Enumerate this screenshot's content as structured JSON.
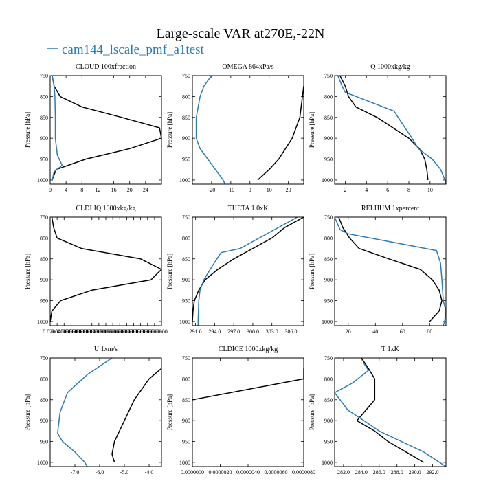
{
  "figure": {
    "title": "Large-scale VAR at270E,-22N",
    "legend": {
      "label": "cam144_lscale_pmf_a1test"
    },
    "colors": {
      "ref": "#000000",
      "test": "#2b7bb9"
    }
  },
  "chart_data": [
    {
      "type": "line",
      "title": "CLOUD  100xfraction",
      "ylabel": "Pressure [hPa]",
      "xlim": [
        0,
        28
      ],
      "ylim": [
        1010,
        750
      ],
      "y_inverted": true,
      "xticks": [
        0,
        4,
        8,
        12,
        16,
        20,
        24
      ],
      "xtick_labels": [
        "0",
        "4",
        "8",
        "12",
        "16",
        "20",
        "24"
      ],
      "yticks": [
        750,
        800,
        850,
        900,
        950,
        1000
      ],
      "ytick_labels": [
        "750",
        "800",
        "850",
        "900",
        "950",
        "1000"
      ],
      "series": [
        {
          "role": "ref",
          "points": [
            [
              0.5,
              750
            ],
            [
              1,
              775
            ],
            [
              2.5,
              800
            ],
            [
              8,
              825
            ],
            [
              18,
              850
            ],
            [
              27.5,
              875
            ],
            [
              28,
              900
            ],
            [
              20,
              925
            ],
            [
              9,
              950
            ],
            [
              1.5,
              975
            ],
            [
              0.5,
              1000
            ]
          ]
        },
        {
          "role": "test",
          "points": [
            [
              0.5,
              750
            ],
            [
              1,
              775
            ],
            [
              1.2,
              800
            ],
            [
              1.3,
              850
            ],
            [
              1.3,
              900
            ],
            [
              1.8,
              940
            ],
            [
              3,
              965
            ],
            [
              1,
              980
            ],
            [
              0.5,
              1000
            ]
          ]
        }
      ]
    },
    {
      "type": "line",
      "title": "OMEGA  864xPa/s",
      "ylabel": "Pressure [hPa]",
      "xlim": [
        -30,
        28
      ],
      "ylim": [
        1010,
        750
      ],
      "y_inverted": true,
      "xticks": [
        -20,
        -10,
        0,
        10,
        20
      ],
      "xtick_labels": [
        "-20",
        "-10",
        "0",
        "10",
        "20"
      ],
      "yticks": [
        750,
        800,
        850,
        900,
        950,
        1000
      ],
      "ytick_labels": [
        "750",
        "800",
        "850",
        "900",
        "950",
        "1000"
      ],
      "series": [
        {
          "role": "ref",
          "points": [
            [
              28,
              775
            ],
            [
              26,
              850
            ],
            [
              22,
              900
            ],
            [
              15,
              950
            ],
            [
              10,
              975
            ],
            [
              4,
              1000
            ]
          ]
        },
        {
          "role": "test",
          "points": [
            [
              -20,
              750
            ],
            [
              -24,
              775
            ],
            [
              -26,
              800
            ],
            [
              -28,
              850
            ],
            [
              -28,
              900
            ],
            [
              -26,
              925
            ],
            [
              -22,
              950
            ],
            [
              -18,
              975
            ],
            [
              -14,
              1000
            ],
            [
              -13,
              1010
            ]
          ]
        }
      ]
    },
    {
      "type": "line",
      "title": "Q  1000xkg/kg",
      "ylabel": "Pressure [hPa]",
      "xlim": [
        1,
        11.5
      ],
      "ylim": [
        1010,
        750
      ],
      "y_inverted": true,
      "xticks": [
        2,
        4,
        6,
        8,
        10
      ],
      "xtick_labels": [
        "2",
        "4",
        "6",
        "8",
        "10"
      ],
      "yticks": [
        750,
        800,
        850,
        900,
        950,
        1000
      ],
      "ytick_labels": [
        "750",
        "800",
        "850",
        "900",
        "950",
        "1000"
      ],
      "series": [
        {
          "role": "ref",
          "points": [
            [
              1.5,
              750
            ],
            [
              2,
              775
            ],
            [
              2.3,
              800
            ],
            [
              3,
              825
            ],
            [
              5,
              850
            ],
            [
              6.5,
              875
            ],
            [
              8,
              900
            ],
            [
              9,
              925
            ],
            [
              9.5,
              950
            ],
            [
              9.7,
              975
            ],
            [
              9.8,
              1000
            ]
          ]
        },
        {
          "role": "test",
          "points": [
            [
              1.3,
              750
            ],
            [
              1.7,
              775
            ],
            [
              2,
              790
            ],
            [
              6.6,
              835
            ],
            [
              8.3,
              900
            ],
            [
              8.9,
              925
            ],
            [
              10.2,
              950
            ],
            [
              11,
              975
            ],
            [
              11.4,
              1000
            ],
            [
              11.5,
              1010
            ]
          ]
        }
      ]
    },
    {
      "type": "line",
      "title": "CLDLIQ  1000xkg/kg",
      "ylabel": "Pressure [hPa]",
      "xlim": [
        0,
        0.32
      ],
      "ylim": [
        1010,
        750
      ],
      "y_inverted": true,
      "xticks": [
        0.02,
        0.04,
        0.06,
        0.08,
        0.1,
        0.12,
        0.14,
        0.16,
        0.18,
        0.2,
        0.22,
        0.24,
        0.26,
        0.28,
        0.3
      ],
      "xtick_labels": [
        "0.020000000",
        "0.04000000",
        "0.06000000",
        "0.08000000",
        "0.10000000",
        "0.12000000",
        "0.14000000",
        "0.16000000",
        "0.18000000",
        "0.20000000",
        "0.22000000",
        "0.24000000",
        "0.26000000",
        "0.28000000",
        "0.30000000"
      ],
      "yticks": [
        750,
        800,
        850,
        900,
        950,
        1000
      ],
      "ytick_labels": [
        "750",
        "800",
        "850",
        "900",
        "950",
        "1000"
      ],
      "series": [
        {
          "role": "ref",
          "points": [
            [
              0.005,
              750
            ],
            [
              0.01,
              775
            ],
            [
              0.02,
              800
            ],
            [
              0.09,
              825
            ],
            [
              0.26,
              850
            ],
            [
              0.32,
              875
            ],
            [
              0.29,
              900
            ],
            [
              0.12,
              925
            ],
            [
              0.03,
              950
            ],
            [
              0.005,
              975
            ],
            [
              0,
              1000
            ]
          ]
        }
      ]
    },
    {
      "type": "line",
      "title": "THETA  1.0xK",
      "ylabel": "Pressure [hPa]",
      "xlim": [
        290.5,
        308
      ],
      "ylim": [
        1010,
        750
      ],
      "y_inverted": true,
      "xticks": [
        291,
        294,
        297,
        300,
        303,
        306
      ],
      "xtick_labels": [
        "291.0",
        "294.0",
        "297.0",
        "300.0",
        "303.0",
        "306.0"
      ],
      "yticks": [
        750,
        800,
        850,
        900,
        950,
        1000
      ],
      "ytick_labels": [
        "750",
        "800",
        "850",
        "900",
        "950",
        "1000"
      ],
      "series": [
        {
          "role": "ref",
          "points": [
            [
              308,
              750
            ],
            [
              305,
              775
            ],
            [
              303,
              800
            ],
            [
              300,
              825
            ],
            [
              297,
              850
            ],
            [
              294.5,
              875
            ],
            [
              292.5,
              900
            ],
            [
              291.5,
              925
            ],
            [
              290.8,
              950
            ],
            [
              290.6,
              975
            ],
            [
              290.5,
              1000
            ]
          ]
        },
        {
          "role": "test",
          "points": [
            [
              307,
              750
            ],
            [
              301,
              800
            ],
            [
              298,
              825
            ],
            [
              295,
              835
            ],
            [
              293.5,
              870
            ],
            [
              292.3,
              900
            ],
            [
              291.7,
              925
            ],
            [
              291.5,
              950
            ],
            [
              291.4,
              1000
            ],
            [
              291.4,
              1010
            ]
          ]
        }
      ]
    },
    {
      "type": "line",
      "title": "RELHUM  1xpercent",
      "ylabel": "Pressure [hPa]",
      "xlim": [
        10,
        92
      ],
      "ylim": [
        1010,
        750
      ],
      "y_inverted": true,
      "xticks": [
        20,
        40,
        60,
        80
      ],
      "xtick_labels": [
        "20",
        "40",
        "60",
        "80"
      ],
      "yticks": [
        750,
        800,
        850,
        900,
        950,
        1000
      ],
      "ytick_labels": [
        "750",
        "800",
        "850",
        "900",
        "950",
        "1000"
      ],
      "series": [
        {
          "role": "ref",
          "points": [
            [
              13,
              750
            ],
            [
              16,
              775
            ],
            [
              21,
              800
            ],
            [
              28,
              825
            ],
            [
              50,
              850
            ],
            [
              73,
              875
            ],
            [
              82,
              900
            ],
            [
              87,
              925
            ],
            [
              89,
              950
            ],
            [
              87,
              975
            ],
            [
              80,
              1000
            ]
          ]
        },
        {
          "role": "test",
          "points": [
            [
              10,
              750
            ],
            [
              14,
              780
            ],
            [
              20,
              790
            ],
            [
              85,
              830
            ],
            [
              88,
              860
            ],
            [
              89,
              900
            ],
            [
              90,
              950
            ],
            [
              92,
              975
            ],
            [
              91,
              1000
            ],
            [
              90,
              1010
            ]
          ]
        }
      ]
    },
    {
      "type": "line",
      "title": "U  1xm/s",
      "ylabel": "Pressure [hPa]",
      "xlim": [
        -8,
        -3.5
      ],
      "ylim": [
        1010,
        750
      ],
      "y_inverted": true,
      "xticks": [
        -7,
        -6,
        -5,
        -4
      ],
      "xtick_labels": [
        "-7.0",
        "-6.0",
        "-5.0",
        "-4.0"
      ],
      "yticks": [
        750,
        800,
        850,
        900,
        950,
        1000
      ],
      "ytick_labels": [
        "750",
        "800",
        "850",
        "900",
        "950",
        "1000"
      ],
      "series": [
        {
          "role": "ref",
          "points": [
            [
              -3.5,
              775
            ],
            [
              -4,
              800
            ],
            [
              -4.6,
              850
            ],
            [
              -5,
              900
            ],
            [
              -5.4,
              950
            ],
            [
              -5.5,
              980
            ],
            [
              -5.4,
              1000
            ]
          ]
        },
        {
          "role": "test",
          "points": [
            [
              -5.5,
              750
            ],
            [
              -6.5,
              790
            ],
            [
              -7.3,
              833
            ],
            [
              -7.6,
              880
            ],
            [
              -7.7,
              930
            ],
            [
              -7.5,
              950
            ],
            [
              -7,
              975
            ],
            [
              -6.6,
              1000
            ],
            [
              -6.5,
              1010
            ]
          ]
        }
      ]
    },
    {
      "type": "line",
      "title": "CLDICE  1000xkg/kg",
      "ylabel": "Pressure [hPa]",
      "xlim": [
        0,
        8e-06
      ],
      "ylim": [
        1010,
        750
      ],
      "y_inverted": true,
      "xticks": [
        0,
        2e-06,
        4e-06,
        6e-06,
        8e-06
      ],
      "xtick_labels": [
        "0.0000000",
        "0.0000020",
        "0.0000040",
        "0.0000060",
        "0.0000080"
      ],
      "yticks": [
        750,
        800,
        850,
        900,
        950,
        1000
      ],
      "ytick_labels": [
        "750",
        "800",
        "850",
        "900",
        "950",
        "1000"
      ],
      "series": [
        {
          "role": "ref",
          "points": [
            [
              8e-06,
              775
            ],
            [
              8e-06,
              800
            ],
            [
              4e-06,
              825
            ],
            [
              0,
              850
            ]
          ]
        }
      ]
    },
    {
      "type": "line",
      "title": "T  1xK",
      "ylabel": "Pressure [hPa]",
      "xlim": [
        281,
        293.5
      ],
      "ylim": [
        1010,
        750
      ],
      "y_inverted": true,
      "xticks": [
        282,
        284,
        286,
        288,
        290,
        292
      ],
      "xtick_labels": [
        "282.0",
        "284.0",
        "286.0",
        "288.0",
        "290.0",
        "292.0"
      ],
      "yticks": [
        750,
        800,
        850,
        900,
        950,
        1000
      ],
      "ytick_labels": [
        "750",
        "800",
        "850",
        "900",
        "950",
        "1000"
      ],
      "series": [
        {
          "role": "ref",
          "points": [
            [
              284,
              750
            ],
            [
              284.8,
              775
            ],
            [
              285.5,
              800
            ],
            [
              285.5,
              850
            ],
            [
              284.5,
              875
            ],
            [
              283.5,
              900
            ],
            [
              285.5,
              925
            ],
            [
              287,
              950
            ],
            [
              289,
              975
            ],
            [
              291,
              1000
            ]
          ]
        },
        {
          "role": "test",
          "points": [
            [
              284.2,
              760
            ],
            [
              284.8,
              780
            ],
            [
              283,
              810
            ],
            [
              281,
              833
            ],
            [
              282.5,
              875
            ],
            [
              284.3,
              900
            ],
            [
              286,
              925
            ],
            [
              288.5,
              950
            ],
            [
              291,
              975
            ],
            [
              293.5,
              1010
            ]
          ]
        }
      ]
    }
  ]
}
